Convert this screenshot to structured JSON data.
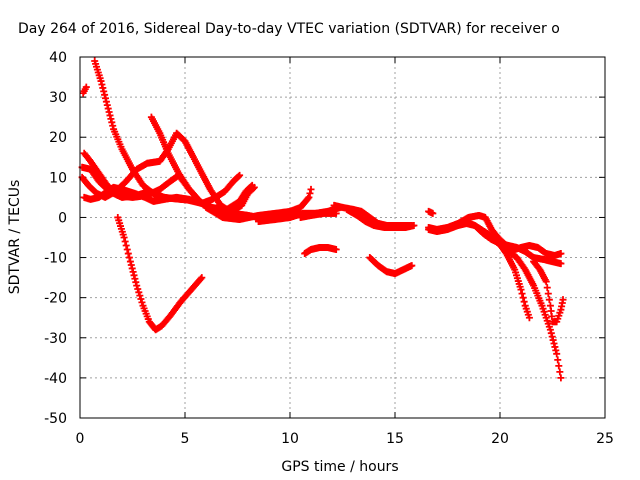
{
  "chart_data": {
    "type": "scatter",
    "title": "Day 264 of 2016, Sidereal Day-to-day VTEC variation (SDTVAR) for receiver o",
    "xlabel": "GPS time / hours",
    "ylabel": "SDTVAR / TECUs",
    "xlim": [
      0,
      25
    ],
    "ylim": [
      -50,
      40
    ],
    "xticks": [
      "0",
      "5",
      "10",
      "15",
      "20",
      "25"
    ],
    "yticks": [
      "-50",
      "-40",
      "-30",
      "-20",
      "-10",
      "0",
      "10",
      "20",
      "30",
      "40"
    ],
    "grid": true,
    "legend": "none",
    "marker": "+",
    "color": "#ff0000",
    "series": [
      {
        "values": [
          [
            0.15,
            31
          ],
          [
            0.3,
            32.5
          ]
        ]
      },
      {
        "values": [
          [
            0.7,
            39
          ],
          [
            1.0,
            34
          ],
          [
            1.3,
            28
          ],
          [
            1.6,
            22
          ],
          [
            2.0,
            17
          ],
          [
            2.5,
            12
          ],
          [
            3.0,
            8
          ],
          [
            3.6,
            5.5
          ],
          [
            4.2,
            4.8
          ],
          [
            5.0,
            4.5
          ],
          [
            5.8,
            3.5
          ],
          [
            6.5,
            2
          ],
          [
            7.2,
            1.5
          ],
          [
            7.7,
            3
          ],
          [
            8.0,
            6
          ],
          [
            8.3,
            7.5
          ]
        ]
      },
      {
        "values": [
          [
            0.2,
            16
          ],
          [
            0.5,
            14
          ],
          [
            0.9,
            11
          ],
          [
            1.3,
            8
          ],
          [
            1.8,
            5.5
          ],
          [
            2.5,
            5
          ],
          [
            3.2,
            5.5
          ],
          [
            3.8,
            7
          ],
          [
            4.3,
            9
          ],
          [
            4.7,
            10.5
          ],
          [
            5.2,
            7
          ],
          [
            5.7,
            4
          ],
          [
            6.2,
            2.5
          ],
          [
            7.0,
            2
          ],
          [
            7.6,
            4
          ],
          [
            7.9,
            6.5
          ],
          [
            8.2,
            8
          ]
        ]
      },
      {
        "values": [
          [
            0.1,
            12.5
          ],
          [
            0.5,
            12
          ],
          [
            0.9,
            9
          ],
          [
            1.4,
            6.5
          ],
          [
            2.0,
            5
          ],
          [
            2.7,
            5.5
          ],
          [
            3.3,
            6.5
          ],
          [
            4.0,
            5
          ],
          [
            4.8,
            4.5
          ],
          [
            5.5,
            4.2
          ],
          [
            6.0,
            3
          ]
        ]
      },
      {
        "values": [
          [
            0.1,
            10
          ],
          [
            0.4,
            8
          ],
          [
            0.8,
            6
          ],
          [
            1.2,
            5
          ],
          [
            1.7,
            6.5
          ],
          [
            2.2,
            9
          ],
          [
            2.7,
            12
          ],
          [
            3.2,
            13.5
          ],
          [
            3.8,
            14
          ],
          [
            4.2,
            17
          ],
          [
            4.6,
            21
          ],
          [
            5.0,
            19
          ],
          [
            5.4,
            15
          ],
          [
            5.8,
            11
          ],
          [
            6.2,
            7
          ],
          [
            6.7,
            3
          ],
          [
            7.3,
            1
          ],
          [
            8.0,
            0.5
          ],
          [
            8.5,
            0
          ]
        ]
      },
      {
        "values": [
          [
            0.2,
            5
          ],
          [
            0.5,
            4.5
          ],
          [
            0.9,
            5
          ],
          [
            1.3,
            6.5
          ],
          [
            1.6,
            7.5
          ],
          [
            2.0,
            7
          ],
          [
            2.6,
            6
          ],
          [
            3.1,
            5
          ],
          [
            3.5,
            4
          ],
          [
            4.0,
            4.5
          ],
          [
            4.6,
            5
          ],
          [
            5.2,
            4.5
          ],
          [
            5.8,
            3.5
          ],
          [
            6.3,
            4.5
          ],
          [
            6.9,
            6.5
          ],
          [
            7.3,
            9
          ],
          [
            7.6,
            10.5
          ]
        ]
      },
      {
        "values": [
          [
            3.4,
            25
          ],
          [
            3.8,
            21
          ],
          [
            4.2,
            16
          ],
          [
            4.7,
            11
          ],
          [
            5.2,
            7
          ],
          [
            5.8,
            3.5
          ],
          [
            6.4,
            1.5
          ],
          [
            7.2,
            0.5
          ],
          [
            8.0,
            0
          ]
        ]
      },
      {
        "values": [
          [
            1.8,
            0
          ],
          [
            2.1,
            -5
          ],
          [
            2.4,
            -11
          ],
          [
            2.7,
            -17
          ],
          [
            3.0,
            -22
          ],
          [
            3.3,
            -26
          ],
          [
            3.6,
            -28
          ],
          [
            3.9,
            -27
          ],
          [
            4.3,
            -24.5
          ],
          [
            4.8,
            -21
          ],
          [
            5.3,
            -18
          ],
          [
            5.8,
            -15
          ]
        ]
      },
      {
        "values": [
          [
            6.0,
            2.5
          ],
          [
            6.8,
            0
          ],
          [
            7.6,
            -0.5
          ],
          [
            8.5,
            0.5
          ],
          [
            9.3,
            1
          ],
          [
            10.0,
            1.5
          ],
          [
            10.5,
            2.5
          ],
          [
            10.9,
            5
          ],
          [
            11.0,
            7
          ]
        ]
      },
      {
        "values": [
          [
            8.5,
            -1
          ],
          [
            9.3,
            -0.5
          ],
          [
            10.0,
            0
          ],
          [
            10.6,
            1
          ],
          [
            11.2,
            1
          ],
          [
            11.8,
            1.5
          ],
          [
            12.4,
            2.5
          ]
        ]
      },
      {
        "values": [
          [
            10.5,
            0
          ],
          [
            11.0,
            0.5
          ],
          [
            11.6,
            1
          ],
          [
            12.2,
            1
          ]
        ]
      },
      {
        "values": [
          [
            10.7,
            -9
          ],
          [
            11.0,
            -8
          ],
          [
            11.4,
            -7.5
          ],
          [
            11.8,
            -7.5
          ],
          [
            12.2,
            -8
          ]
        ]
      },
      {
        "values": [
          [
            12.1,
            3
          ],
          [
            12.5,
            2.5
          ],
          [
            13.0,
            2
          ],
          [
            13.4,
            1.5
          ],
          [
            13.8,
            0
          ],
          [
            14.2,
            -1.5
          ],
          [
            14.6,
            -2
          ],
          [
            15.0,
            -2
          ],
          [
            15.4,
            -2
          ],
          [
            15.8,
            -2
          ]
        ]
      },
      {
        "values": [
          [
            12.7,
            2
          ],
          [
            13.2,
            0.5
          ],
          [
            13.6,
            -1
          ],
          [
            14.0,
            -2
          ],
          [
            14.5,
            -2.5
          ],
          [
            15.0,
            -2.5
          ],
          [
            15.5,
            -2.5
          ],
          [
            15.9,
            -2
          ]
        ]
      },
      {
        "values": [
          [
            13.8,
            -10
          ],
          [
            14.2,
            -12
          ],
          [
            14.6,
            -13.5
          ],
          [
            15.0,
            -14
          ],
          [
            15.4,
            -13
          ],
          [
            15.8,
            -12
          ]
        ]
      },
      {
        "values": [
          [
            16.6,
            1.5
          ],
          [
            16.8,
            1
          ]
        ]
      },
      {
        "values": [
          [
            16.6,
            -2.5
          ],
          [
            17.0,
            -3
          ],
          [
            17.5,
            -2.5
          ],
          [
            18.0,
            -1.5
          ],
          [
            18.5,
            0
          ],
          [
            19.0,
            0.5
          ],
          [
            19.3,
            0
          ],
          [
            19.6,
            -3
          ],
          [
            19.9,
            -5
          ],
          [
            20.3,
            -7
          ],
          [
            20.7,
            -8
          ],
          [
            21.0,
            -7.5
          ],
          [
            21.4,
            -7
          ],
          [
            21.8,
            -7.5
          ],
          [
            22.2,
            -9
          ],
          [
            22.6,
            -9.5
          ],
          [
            22.9,
            -9
          ]
        ]
      },
      {
        "values": [
          [
            16.6,
            -3
          ],
          [
            17.0,
            -3.5
          ],
          [
            17.5,
            -3
          ],
          [
            18.0,
            -2
          ],
          [
            18.4,
            -1.5
          ],
          [
            18.8,
            -2
          ],
          [
            19.2,
            -4
          ],
          [
            19.6,
            -5.5
          ],
          [
            20.0,
            -6.5
          ],
          [
            20.4,
            -7
          ],
          [
            20.8,
            -7.5
          ],
          [
            21.2,
            -8.5
          ],
          [
            21.6,
            -10
          ],
          [
            22.1,
            -10.5
          ],
          [
            22.5,
            -11
          ],
          [
            22.9,
            -11.5
          ]
        ]
      },
      {
        "values": [
          [
            18.3,
            -1
          ],
          [
            18.8,
            -2
          ],
          [
            19.4,
            -4
          ],
          [
            19.9,
            -6
          ],
          [
            20.3,
            -9
          ],
          [
            20.7,
            -13
          ],
          [
            21.0,
            -18
          ],
          [
            21.2,
            -22
          ],
          [
            21.4,
            -25
          ]
        ]
      },
      {
        "values": [
          [
            19.8,
            -6
          ],
          [
            20.3,
            -8
          ],
          [
            20.8,
            -10
          ],
          [
            21.2,
            -13
          ],
          [
            21.6,
            -17
          ],
          [
            22.0,
            -22
          ],
          [
            22.4,
            -28
          ],
          [
            22.7,
            -34
          ],
          [
            22.9,
            -40
          ]
        ]
      },
      {
        "values": [
          [
            21.6,
            -11
          ],
          [
            21.9,
            -13
          ],
          [
            22.2,
            -16
          ],
          [
            22.4,
            -22
          ],
          [
            22.5,
            -26
          ],
          [
            22.7,
            -26
          ],
          [
            22.9,
            -23
          ],
          [
            23.0,
            -20.5
          ]
        ]
      }
    ]
  }
}
